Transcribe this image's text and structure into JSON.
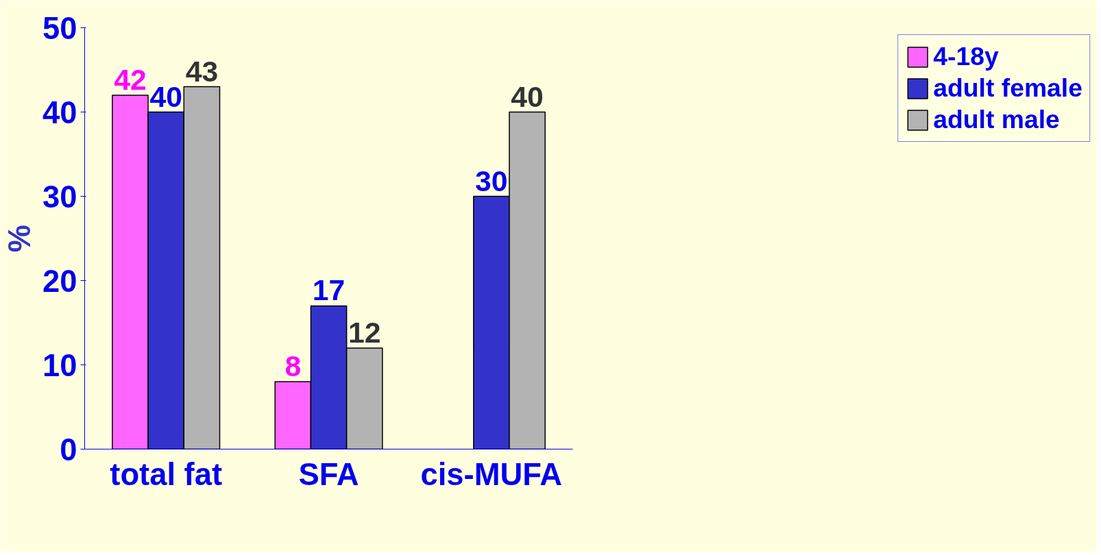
{
  "chart_data": {
    "type": "bar",
    "ylabel": "%",
    "categories": [
      "total fat",
      "SFA",
      "cis-MUFA"
    ],
    "series": [
      {
        "name": "4-18y",
        "color": "#ff66ff",
        "values": [
          42,
          8,
          null
        ]
      },
      {
        "name": "adult female",
        "color": "#3333cc",
        "values": [
          40,
          17,
          30
        ]
      },
      {
        "name": "adult male",
        "color": "#b3b3b3",
        "values": [
          43,
          12,
          40
        ]
      }
    ],
    "ylim": [
      0,
      50
    ],
    "yticks": [
      0,
      10,
      20,
      30,
      40,
      50
    ],
    "data_labels": true,
    "grid": false,
    "legend": "right"
  }
}
